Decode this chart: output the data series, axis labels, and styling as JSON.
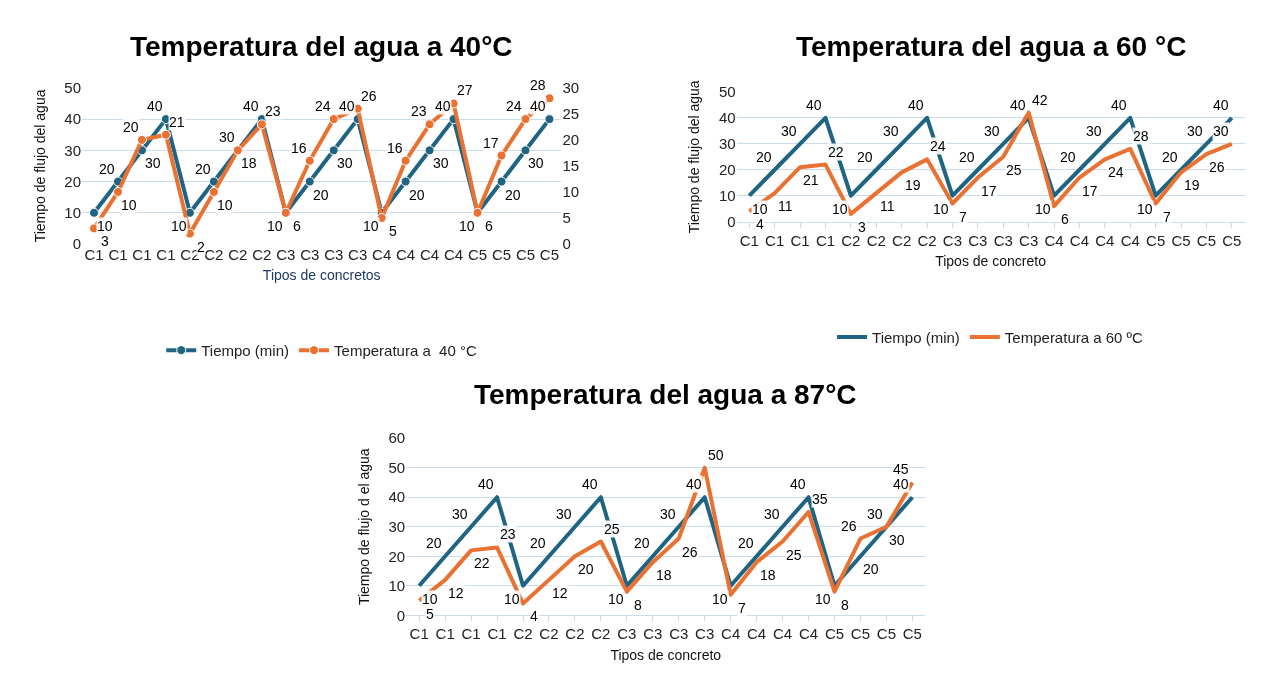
{
  "chart_data": [
    {
      "type": "line",
      "title": "Temperatura del agua a 40°C",
      "xlabel": "Tipos de concretos",
      "ylabel": "Tiempo de flujo del agua",
      "categories": [
        "C1",
        "C1",
        "C1",
        "C1",
        "C2",
        "C2",
        "C2",
        "C2",
        "C3",
        "C3",
        "C3",
        "C3",
        "C4",
        "C4",
        "C4",
        "C4",
        "C5",
        "C5",
        "C5",
        "C5"
      ],
      "series": [
        {
          "name": "Tiempo (min)",
          "color": "#1f6482",
          "values": [
            10,
            20,
            30,
            40,
            10,
            20,
            30,
            40,
            10,
            20,
            30,
            40,
            10,
            20,
            30,
            40,
            10,
            20,
            30,
            40
          ]
        },
        {
          "name": "Temperatura a  40 °C",
          "color": "#e97132",
          "axis": "y2",
          "values": [
            3,
            10,
            20,
            21,
            2,
            10,
            18,
            23,
            6,
            16,
            24,
            26,
            5,
            16,
            23,
            27,
            6,
            17,
            24,
            28
          ]
        }
      ],
      "ylim": [
        0,
        50
      ],
      "yticks": [
        0,
        10,
        20,
        30,
        40,
        50
      ],
      "y2lim": [
        0,
        30
      ],
      "y2ticks": [
        0,
        5,
        10,
        15,
        20,
        25,
        30
      ],
      "grid": "y",
      "legend": "bottom",
      "marker": "circle",
      "data_labels": true
    },
    {
      "type": "line",
      "title": "Temperatura del agua a 60 °C",
      "xlabel": "Tipos de concreto",
      "ylabel": "Tiempo de flujo del agua",
      "categories": [
        "C1",
        "C1",
        "C1",
        "C1",
        "C2",
        "C2",
        "C2",
        "C2",
        "C3",
        "C3",
        "C3",
        "C3",
        "C4",
        "C4",
        "C4",
        "C4",
        "C5",
        "C5",
        "C5",
        "C5"
      ],
      "series": [
        {
          "name": "Tiempo (min)",
          "color": "#1f6482",
          "values": [
            10,
            20,
            30,
            40,
            10,
            20,
            30,
            40,
            10,
            20,
            30,
            40,
            10,
            20,
            30,
            40,
            10,
            20,
            30,
            40
          ]
        },
        {
          "name": "Temperatura a 60 ºC",
          "color": "#e97132",
          "values": [
            4,
            11,
            21,
            22,
            3,
            11,
            19,
            24,
            7,
            17,
            25,
            42,
            6,
            17,
            24,
            28,
            7,
            19,
            26,
            30
          ]
        }
      ],
      "ylim": [
        0,
        50
      ],
      "yticks": [
        0,
        10,
        20,
        30,
        40,
        50
      ],
      "grid": "y",
      "legend": "bottom",
      "marker": "none",
      "data_labels": true
    },
    {
      "type": "line",
      "title": "Temperatura del agua a 87°C",
      "xlabel": "Tipos de concreto",
      "ylabel": "Tiempo de flujo d el agua",
      "categories": [
        "C1",
        "C1",
        "C1",
        "C1",
        "C2",
        "C2",
        "C2",
        "C2",
        "C3",
        "C3",
        "C3",
        "C3",
        "C4",
        "C4",
        "C4",
        "C4",
        "C5",
        "C5",
        "C5",
        "C5"
      ],
      "series": [
        {
          "color": "#1f6482",
          "values": [
            10,
            20,
            30,
            40,
            10,
            20,
            30,
            40,
            10,
            20,
            30,
            40,
            10,
            20,
            30,
            40,
            10,
            20,
            30,
            40
          ]
        },
        {
          "color": "#e97132",
          "values": [
            5,
            12,
            22,
            23,
            4,
            12,
            20,
            25,
            8,
            18,
            26,
            50,
            7,
            18,
            25,
            35,
            8,
            26,
            30,
            45
          ]
        }
      ],
      "ylim": [
        0,
        60
      ],
      "yticks": [
        0,
        10,
        20,
        30,
        40,
        50,
        60
      ],
      "grid": "y",
      "marker": "none",
      "data_labels": true
    }
  ]
}
